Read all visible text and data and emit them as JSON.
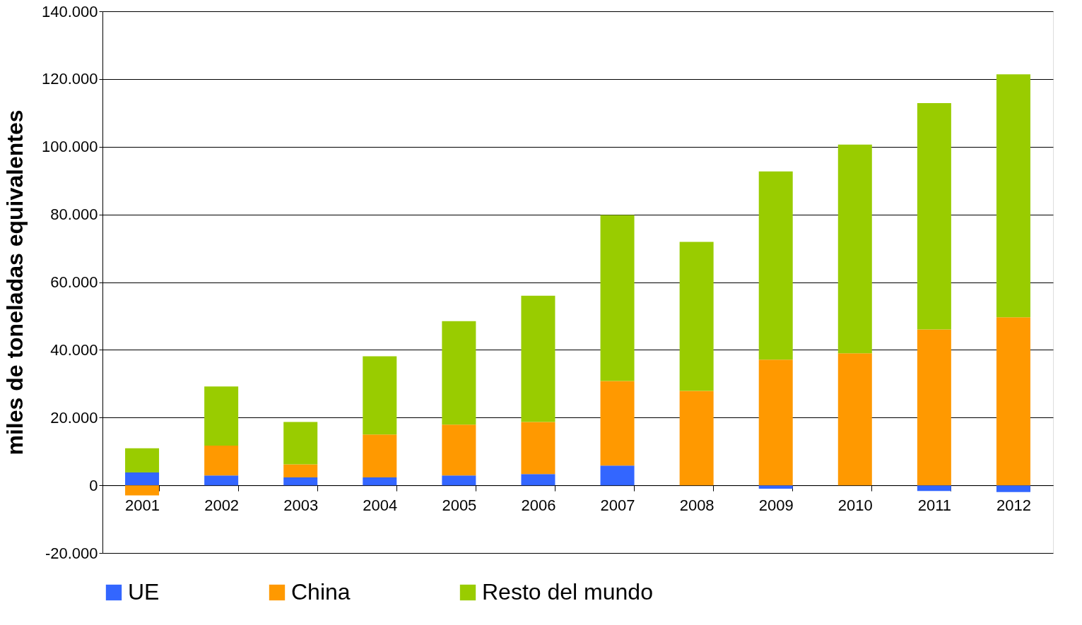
{
  "chart_data": {
    "type": "bar",
    "stacked": true,
    "ylabel": "miles de toneladas equivalentes",
    "categories": [
      "2001",
      "2002",
      "2003",
      "2004",
      "2005",
      "2006",
      "2007",
      "2008",
      "2009",
      "2010",
      "2011",
      "2012"
    ],
    "series": [
      {
        "name": "UE",
        "color": "#3366ff",
        "values": [
          3800,
          2900,
          2300,
          2300,
          2900,
          3300,
          5800,
          0,
          -1000,
          0,
          -1700,
          -2000
        ]
      },
      {
        "name": "China",
        "color": "#ff9900",
        "values": [
          -3000,
          8800,
          3900,
          12700,
          15000,
          15400,
          25000,
          27900,
          37100,
          39000,
          46000,
          49600
        ]
      },
      {
        "name": "Resto del mundo",
        "color": "#99cc00",
        "values": [
          7100,
          17500,
          12500,
          23100,
          30600,
          37300,
          49000,
          44000,
          55600,
          61600,
          66900,
          71800
        ]
      }
    ],
    "ylim": [
      -20000,
      140000
    ],
    "yticks": [
      {
        "value": -20000,
        "label": "-20.000"
      },
      0,
      {
        "value": 20000,
        "label": "20.000"
      },
      {
        "value": 40000,
        "label": "40.000"
      },
      {
        "value": 60000,
        "label": "60.000"
      },
      {
        "value": 80000,
        "label": "80.000"
      },
      {
        "value": 100000,
        "label": "100.000"
      },
      {
        "value": 120000,
        "label": "120.000"
      },
      {
        "value": 140000,
        "label": "140.000"
      }
    ],
    "grid": "y",
    "legend": "bottom"
  }
}
